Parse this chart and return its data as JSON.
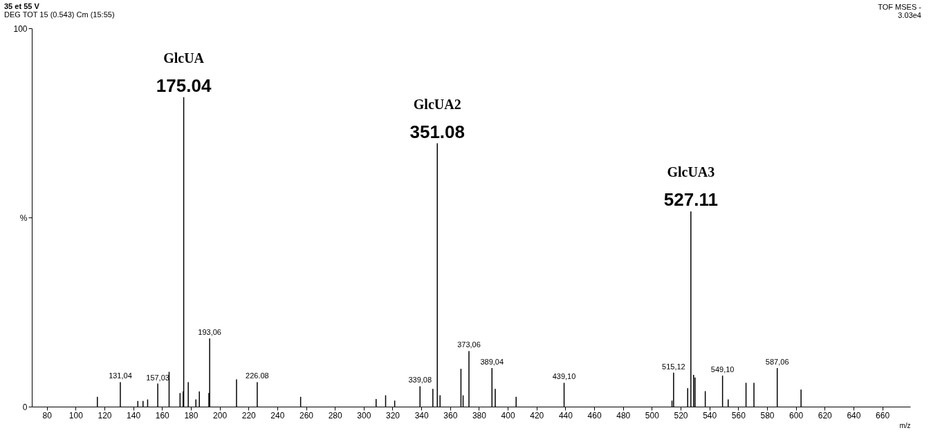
{
  "chart_data": {
    "type": "bar",
    "title": "35 et 55 V",
    "subtitle": "DEG TOT 15 (0.543) Cm (15:55)",
    "xlabel": "m/z",
    "x": [
      115.1,
      131.04,
      143.2,
      146.8,
      150.0,
      157.03,
      164.9,
      172.5,
      174.7,
      175.04,
      178.2,
      183.5,
      185.9,
      192.5,
      193.06,
      211.7,
      226.08,
      256.2,
      308.6,
      315.2,
      321.5,
      339.08,
      348.0,
      351.08,
      353.0,
      367.5,
      369.0,
      373.06,
      389.04,
      391.3,
      405.8,
      439.1,
      514.0,
      515.12,
      524.9,
      527.11,
      529.0,
      530.0,
      537.1,
      549.1,
      553.0,
      565.4,
      570.9,
      587.06,
      603.6
    ],
    "values": [
      2.6,
      6.5,
      1.5,
      1.5,
      1.9,
      6.1,
      9.2,
      3.6,
      4.0,
      81.8,
      6.5,
      1.9,
      4.0,
      3.6,
      18.0,
      7.2,
      6.5,
      2.6,
      2.0,
      3.0,
      1.6,
      5.4,
      4.7,
      69.6,
      3.0,
      10.0,
      3.0,
      14.7,
      10.2,
      4.7,
      2.6,
      6.3,
      1.6,
      9.0,
      4.9,
      51.6,
      8.4,
      7.7,
      4.1,
      8.2,
      1.9,
      6.3,
      6.3,
      10.2,
      4.5
    ],
    "color": "#000000",
    "xlim": [
      72,
      677
    ],
    "xticks": [
      80,
      100,
      120,
      140,
      160,
      180,
      200,
      220,
      240,
      260,
      280,
      300,
      320,
      340,
      360,
      380,
      400,
      420,
      440,
      460,
      480,
      500,
      520,
      540,
      560,
      580,
      600,
      620,
      640,
      660
    ],
    "ylim": [
      0,
      100
    ],
    "yticks": [
      0,
      {
        "value": 50,
        "label": "%"
      },
      100
    ],
    "annotations": [
      {
        "text": "GlcUA",
        "x": 175.04,
        "y": 81.8
      },
      {
        "text": "175.04",
        "x": 175.04,
        "y": 81.8
      },
      {
        "text": "GlcUA2",
        "x": 351.08,
        "y": 69.6
      },
      {
        "text": "351.08",
        "x": 351.08,
        "y": 69.6
      },
      {
        "text": "GlcUA3",
        "x": 527.11,
        "y": 51.6
      },
      {
        "text": "527.11",
        "x": 527.11,
        "y": 51.6
      },
      {
        "text": "131,04",
        "x": 131.04,
        "y": 6.5
      },
      {
        "text": "157,03",
        "x": 157.03,
        "y": 6.1
      },
      {
        "text": "193,06",
        "x": 193.06,
        "y": 18.0
      },
      {
        "text": "226.08",
        "x": 226.08,
        "y": 6.5
      },
      {
        "text": "339,08",
        "x": 339.08,
        "y": 5.4
      },
      {
        "text": "373,06",
        "x": 373.06,
        "y": 14.7
      },
      {
        "text": "389,04",
        "x": 389.04,
        "y": 10.2
      },
      {
        "text": "439,10",
        "x": 439.1,
        "y": 6.3
      },
      {
        "text": "515,12",
        "x": 515.12,
        "y": 9.0
      },
      {
        "text": "549,10",
        "x": 549.1,
        "y": 8.2
      },
      {
        "text": "587,06",
        "x": 587.06,
        "y": 10.2
      },
      "TOF MSES -",
      "3.03e4"
    ]
  }
}
